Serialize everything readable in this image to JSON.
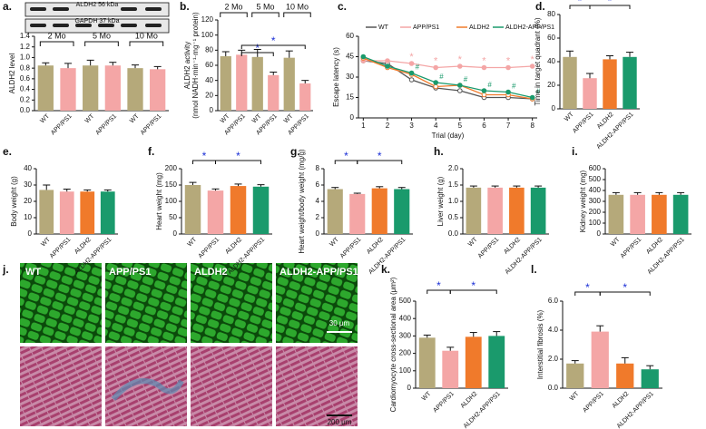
{
  "chart_data": [
    {
      "type": "bar",
      "label": "a.",
      "ylabel": [
        "ALDH2 level"
      ],
      "blot_labels": [
        "ALDH2  56 kDa",
        "GAPDH  37 kDa"
      ],
      "groups": [
        "2 Mo",
        "5 Mo",
        "10 Mo"
      ],
      "categories": [
        "WT",
        "APP/PS1",
        "WT",
        "APP/PS1",
        "WT",
        "APP/PS1"
      ],
      "values": [
        0.85,
        0.8,
        0.85,
        0.85,
        0.8,
        0.78
      ],
      "errors": [
        0.05,
        0.09,
        0.1,
        0.06,
        0.06,
        0.05
      ],
      "colors": [
        "#b5a97a",
        "#f4a6a6",
        "#b5a97a",
        "#f4a6a6",
        "#b5a97a",
        "#f4a6a6"
      ],
      "ylim": [
        0,
        1.4
      ],
      "yticks": [
        {
          "value": 0,
          "label": "0.0"
        },
        0.2,
        0.4,
        0.6,
        0.8,
        {
          "value": 1,
          "label": "1.0"
        },
        1.2,
        1.4
      ]
    },
    {
      "type": "bar",
      "label": "b.",
      "ylabel": [
        "ALDH2 activity",
        "(nmol NADH·min⁻¹·mg⁻¹ protein)"
      ],
      "groups": [
        "2 Mo",
        "5 Mo",
        "10 Mo"
      ],
      "annotation": "*",
      "categories": [
        "WT",
        "APP/PS1",
        "WT",
        "APP/PS1",
        "WT",
        "APP/PS1"
      ],
      "values": [
        72,
        74,
        71,
        47,
        70,
        36
      ],
      "errors": [
        6,
        6,
        10,
        4,
        9,
        4
      ],
      "colors": [
        "#b5a97a",
        "#f4a6a6",
        "#b5a97a",
        "#f4a6a6",
        "#b5a97a",
        "#f4a6a6"
      ],
      "ylim": [
        0,
        120
      ],
      "yticks": [
        0,
        20,
        40,
        60,
        80,
        100,
        120
      ]
    },
    {
      "type": "line",
      "label": "c.",
      "ylabel": [
        "Escape latency (s)"
      ],
      "xlabel": "Trial (day)",
      "annotations": [
        "*",
        "#"
      ],
      "x": [
        1,
        2,
        3,
        4,
        5,
        6,
        7,
        8
      ],
      "xlim": [
        0.8,
        8.2
      ],
      "xticks": [
        1,
        2,
        3,
        4,
        5,
        6,
        7,
        8
      ],
      "ylim": [
        0,
        60
      ],
      "yticks": [
        0,
        15,
        30,
        45,
        60
      ],
      "series": [
        {
          "name": "WT",
          "color": "#555555",
          "values": [
            42,
            40,
            28,
            22,
            20,
            15,
            15,
            14
          ]
        },
        {
          "name": "APP/PS1",
          "color": "#f4a6a6",
          "values": [
            42,
            42,
            40,
            37,
            38,
            37,
            37,
            38
          ]
        },
        {
          "name": "ALDH2",
          "color": "#f07a2b",
          "values": [
            44,
            37,
            32,
            23,
            24,
            17,
            17,
            14
          ]
        },
        {
          "name": "ALDH2-APP/PS1",
          "color": "#1a9a6c",
          "values": [
            45,
            38,
            33,
            26,
            24,
            20,
            19,
            15
          ]
        }
      ]
    },
    {
      "type": "bar",
      "label": "d.",
      "ylabel": [
        "Time in target quadrant (%)"
      ],
      "annotation": "*",
      "categories": [
        "WT",
        "APP/PS1",
        "ALDH2",
        "ALDH2-APP/PS1"
      ],
      "values": [
        44,
        26,
        42,
        44
      ],
      "errors": [
        5,
        4,
        3,
        4
      ],
      "colors": [
        "#b5a97a",
        "#f4a6a6",
        "#f07a2b",
        "#1a9a6c"
      ],
      "ylim": [
        0,
        80
      ],
      "yticks": [
        0,
        20,
        40,
        60,
        80
      ]
    },
    {
      "type": "bar",
      "label": "e.",
      "ylabel": [
        "Body weight (g)"
      ],
      "categories": [
        "WT",
        "APP/PS1",
        "ALDH2",
        "ALDH2-APP/PS1"
      ],
      "values": [
        27,
        26,
        26,
        26
      ],
      "errors": [
        3,
        1.5,
        1,
        1
      ],
      "colors": [
        "#b5a97a",
        "#f4a6a6",
        "#f07a2b",
        "#1a9a6c"
      ],
      "ylim": [
        0,
        40
      ],
      "yticks": [
        0,
        10,
        20,
        30,
        40
      ]
    },
    {
      "type": "bar",
      "label": "f.",
      "ylabel": [
        "Heart weight (mg)"
      ],
      "annotation": "*",
      "categories": [
        "WT",
        "APP/PS1",
        "ALDH2",
        "ALDH2-APP/PS1"
      ],
      "values": [
        150,
        133,
        147,
        145
      ],
      "errors": [
        8,
        5,
        6,
        6
      ],
      "colors": [
        "#b5a97a",
        "#f4a6a6",
        "#f07a2b",
        "#1a9a6c"
      ],
      "ylim": [
        0,
        200
      ],
      "yticks": [
        0,
        50,
        100,
        150,
        200
      ]
    },
    {
      "type": "bar",
      "label": "g.",
      "ylabel": [
        "Heart weight/body weight (mg/g)"
      ],
      "annotation": "*",
      "categories": [
        "WT",
        "APP/PS1",
        "ALDH2",
        "ALDH2-APP/PS1"
      ],
      "values": [
        5.5,
        4.9,
        5.6,
        5.5
      ],
      "errors": [
        0.2,
        0.1,
        0.2,
        0.2
      ],
      "colors": [
        "#b5a97a",
        "#f4a6a6",
        "#f07a2b",
        "#1a9a6c"
      ],
      "ylim": [
        0,
        8
      ],
      "yticks": [
        0,
        2,
        4,
        6,
        8
      ]
    },
    {
      "type": "bar",
      "label": "h.",
      "ylabel": [
        "Liver weight (g)"
      ],
      "categories": [
        "WT",
        "APP/PS1",
        "ALDH2",
        "ALDH2-APP/PS1"
      ],
      "values": [
        1.42,
        1.42,
        1.42,
        1.42
      ],
      "errors": [
        0.05,
        0.05,
        0.05,
        0.05
      ],
      "colors": [
        "#b5a97a",
        "#f4a6a6",
        "#f07a2b",
        "#1a9a6c"
      ],
      "ylim": [
        0,
        2
      ],
      "yticks": [
        {
          "value": 0,
          "label": "0.0"
        },
        0.5,
        {
          "value": 1,
          "label": "1.0"
        },
        1.5,
        {
          "value": 2,
          "label": "2.0"
        }
      ]
    },
    {
      "type": "bar",
      "label": "i.",
      "ylabel": [
        "Kidney weight (mg)"
      ],
      "categories": [
        "WT",
        "APP/PS1",
        "ALDH2",
        "ALDH2-APP/PS1"
      ],
      "values": [
        360,
        360,
        360,
        360
      ],
      "errors": [
        20,
        20,
        20,
        20
      ],
      "colors": [
        "#b5a97a",
        "#f4a6a6",
        "#f07a2b",
        "#1a9a6c"
      ],
      "ylim": [
        0,
        600
      ],
      "yticks": [
        0,
        100,
        200,
        300,
        400,
        500,
        600
      ]
    },
    {
      "type": "bar",
      "label": "k.",
      "ylabel": [
        "Cardiomyocyte cross-sectional area (μm²)"
      ],
      "annotation": "*",
      "categories": [
        "WT",
        "APP/PS1",
        "ALDH2",
        "ALDH2-APP/PS1"
      ],
      "values": [
        290,
        215,
        295,
        300
      ],
      "errors": [
        15,
        20,
        25,
        25
      ],
      "colors": [
        "#b5a97a",
        "#f4a6a6",
        "#f07a2b",
        "#1a9a6c"
      ],
      "ylim": [
        0,
        500
      ],
      "yticks": [
        0,
        100,
        200,
        300,
        400,
        500
      ]
    },
    {
      "type": "bar",
      "label": "l.",
      "ylabel": [
        "Interstitial fibrosis (%)"
      ],
      "annotation": "*",
      "categories": [
        "WT",
        "APP/PS1",
        "ALDH2",
        "ALDH2-APP/PS1"
      ],
      "values": [
        1.7,
        3.9,
        1.7,
        1.3
      ],
      "errors": [
        0.2,
        0.4,
        0.4,
        0.25
      ],
      "colors": [
        "#b5a97a",
        "#f4a6a6",
        "#f07a2b",
        "#1a9a6c"
      ],
      "ylim": [
        0,
        6
      ],
      "yticks": [
        {
          "value": 0,
          "label": "0.0"
        },
        {
          "value": 2,
          "label": "2.0"
        },
        {
          "value": 4,
          "label": "4.0"
        },
        {
          "value": 6,
          "label": "6.0"
        }
      ]
    }
  ],
  "micrographs": {
    "label": "j.",
    "titles": [
      "WT",
      "APP/PS1",
      "ALDH2",
      "ALDH2-APP/PS1"
    ],
    "scale_bars": [
      "30 μm",
      "200 μm"
    ]
  }
}
